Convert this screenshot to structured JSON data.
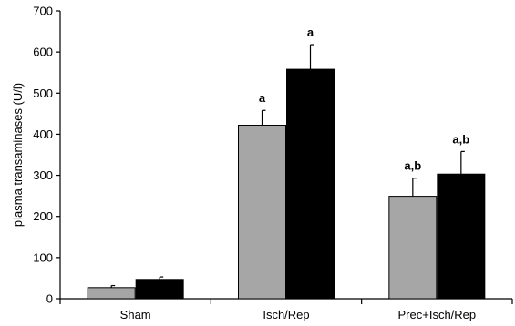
{
  "chart_data": {
    "type": "bar",
    "categories": [
      "Sham",
      "Isch/Rep",
      "Prec+Isch/Rep"
    ],
    "series": [
      {
        "color": "#a6a6a6",
        "values": [
          27,
          422,
          249
        ],
        "errors": [
          5,
          36,
          44
        ]
      },
      {
        "color": "#000000",
        "values": [
          47,
          558,
          303
        ],
        "errors": [
          6,
          60,
          55
        ]
      }
    ],
    "significance": [
      [
        "",
        ""
      ],
      [
        "a",
        "a"
      ],
      [
        "a,b",
        "a,b"
      ]
    ],
    "ylabel": "plasma transaminases (U/l)",
    "xlabel": "",
    "ylim": [
      0,
      700
    ],
    "yticks": [
      0,
      100,
      200,
      300,
      400,
      500,
      600,
      700
    ],
    "grid": false,
    "legend": "none"
  }
}
